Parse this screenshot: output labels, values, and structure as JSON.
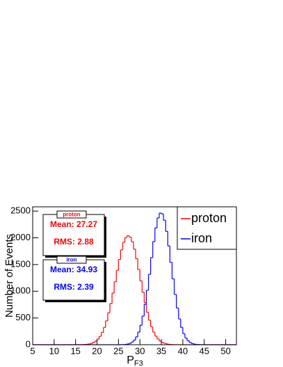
{
  "chart_data": {
    "type": "histogram",
    "xlabel": {
      "text": "P",
      "subscript": "F3"
    },
    "ylabel": "Number of Events",
    "xlim": [
      5,
      52.5
    ],
    "ylim": [
      0,
      2580
    ],
    "xticks": [
      5,
      10,
      15,
      20,
      25,
      30,
      35,
      40,
      45,
      50
    ],
    "yticks": [
      0,
      500,
      1000,
      1500,
      2000,
      2500
    ],
    "legend": "top-right",
    "bins": [
      5,
      5.5,
      6,
      6.5,
      7,
      7.5,
      8,
      8.5,
      9,
      9.5,
      10,
      10.5,
      11,
      11.5,
      12,
      12.5,
      13,
      13.5,
      14,
      14.5,
      15,
      15.5,
      16,
      16.5,
      17,
      17.5,
      18,
      18.5,
      19,
      19.5,
      20,
      20.5,
      21,
      21.5,
      22,
      22.5,
      23,
      23.5,
      24,
      24.5,
      25,
      25.5,
      26,
      26.5,
      27,
      27.5,
      28,
      28.5,
      29,
      29.5,
      30,
      30.5,
      31,
      31.5,
      32,
      32.5,
      33,
      33.5,
      34,
      34.5,
      35,
      35.5,
      36,
      36.5,
      37,
      37.5,
      38,
      38.5,
      39,
      39.5,
      40,
      40.5,
      41,
      41.5,
      42,
      42.5,
      43,
      43.5,
      44,
      44.5,
      45,
      45.5,
      46,
      46.5,
      47,
      47.5,
      48,
      48.5,
      49,
      49.5,
      50,
      50.5,
      51,
      51.5,
      52,
      52.5
    ],
    "series": [
      {
        "name": "proton",
        "color": "#ff0000",
        "values": [
          0,
          0,
          0,
          0,
          0,
          0,
          0,
          0,
          0,
          0,
          0,
          0,
          0,
          0,
          0,
          0,
          0,
          0,
          0,
          0,
          0,
          1,
          1,
          3,
          5,
          9,
          15,
          26,
          43,
          68,
          105,
          158,
          230,
          324,
          446,
          596,
          771,
          967,
          1177,
          1391,
          1595,
          1775,
          1916,
          2007,
          2040,
          2012,
          1926,
          1788,
          1610,
          1408,
          1195,
          983,
          785,
          608,
          459,
          334,
          236,
          162,
          109,
          70,
          44,
          27,
          16,
          9,
          5,
          3,
          1,
          1,
          0,
          0,
          0,
          0,
          0,
          0,
          0,
          0,
          0,
          0,
          0,
          0,
          0,
          0,
          0,
          0,
          0,
          0,
          0,
          0,
          0,
          0,
          0,
          0,
          0,
          0,
          0
        ],
        "stats": {
          "title": "proton",
          "mean": "Mean: 27.27",
          "rms": "RMS: 2.88"
        }
      },
      {
        "name": "iron",
        "color": "#0000ff",
        "values": [
          0,
          0,
          0,
          0,
          0,
          0,
          0,
          0,
          0,
          0,
          0,
          0,
          0,
          0,
          0,
          0,
          0,
          0,
          0,
          0,
          0,
          0,
          0,
          0,
          0,
          0,
          0,
          0,
          0,
          0,
          0,
          0,
          0,
          0,
          0,
          0,
          0,
          0,
          0,
          0,
          1,
          2,
          3,
          7,
          14,
          27,
          50,
          87,
          147,
          236,
          363,
          535,
          755,
          1019,
          1317,
          1630,
          1930,
          2186,
          2372,
          2463,
          2448,
          2329,
          2121,
          1848,
          1542,
          1232,
          941,
          687,
          482,
          324,
          207,
          127,
          75,
          42,
          23,
          12,
          6,
          3,
          1,
          0,
          0,
          0,
          0,
          0,
          0,
          0,
          0,
          0,
          0,
          0,
          0,
          0,
          0,
          0,
          0
        ],
        "stats": {
          "title": "iron",
          "mean": "Mean: 34.93",
          "rms": "RMS: 2.39"
        }
      }
    ]
  }
}
